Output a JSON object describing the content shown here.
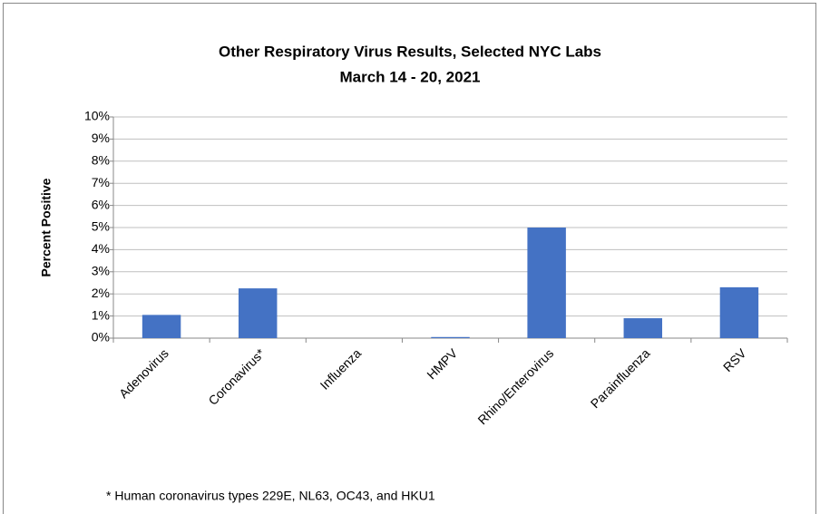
{
  "chart_data": {
    "type": "bar",
    "title": [
      "Other Respiratory Virus Results, Selected NYC Labs",
      "March 14 - 20, 2021"
    ],
    "y_label": "Percent Positive",
    "categories": [
      "Adenovirus",
      "Coronavirus*",
      "Influenza",
      "HMPV",
      "Rhino/Enterovirus",
      "Parainfluenza",
      "RSV"
    ],
    "values": [
      1.05,
      2.25,
      0,
      0.05,
      5.0,
      0.9,
      2.3
    ],
    "color": "#4472c4",
    "ylim": [
      0,
      10
    ],
    "yticks": [
      {
        "value": 0,
        "label": "0%"
      },
      {
        "value": 1,
        "label": "1%"
      },
      {
        "value": 2,
        "label": "2%"
      },
      {
        "value": 3,
        "label": "3%"
      },
      {
        "value": 4,
        "label": "4%"
      },
      {
        "value": 5,
        "label": "5%"
      },
      {
        "value": 6,
        "label": "6%"
      },
      {
        "value": 7,
        "label": "7%"
      },
      {
        "value": 8,
        "label": "8%"
      },
      {
        "value": 9,
        "label": "9%"
      },
      {
        "value": 10,
        "label": "10%"
      }
    ],
    "grid": true,
    "footnote": "* Human coronavirus types 229E, NL63, OC43, and HKU1"
  }
}
